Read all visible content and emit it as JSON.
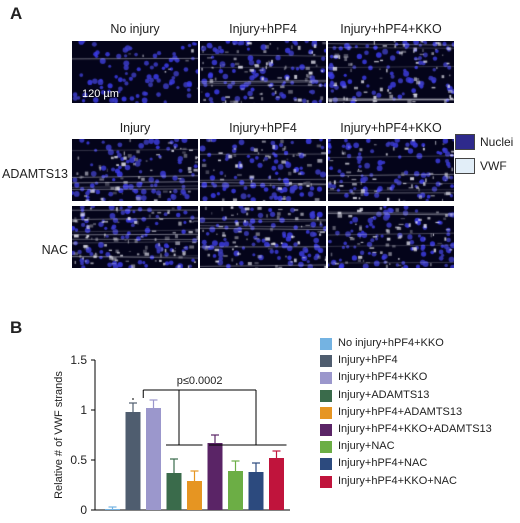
{
  "panel_a": {
    "letter": "A",
    "col_titles_top": [
      "No injury",
      "Injury+hPF4",
      "Injury+hPF4+KKO"
    ],
    "col_titles_mid": [
      "Injury",
      "Injury+hPF4",
      "Injury+hPF4+KKO"
    ],
    "row_labels": [
      "ADAMTS13",
      "NAC"
    ],
    "scale_bar_label": "120 µm",
    "key": [
      {
        "label": "Nuclei",
        "color": "#2e2a8c"
      },
      {
        "label": "VWF",
        "color": "#e2eef8"
      }
    ]
  },
  "panel_b": {
    "letter": "B"
  },
  "chart_data": {
    "type": "bar",
    "title": "",
    "xlabel": "",
    "ylabel": "Relative # of VWF strands",
    "ylim": [
      0,
      1.5
    ],
    "yticks": [
      "0",
      "0.5",
      "1",
      "1.5"
    ],
    "grid": false,
    "legend_position": "right",
    "annotation": "p≤0.0002",
    "categories": [
      "No injury+hPF4+KKO",
      "Injury+hPF4",
      "Injury+hPF4+KKO",
      "Injury+ADAMTS13",
      "Injury+hPF4+ADAMTS13",
      "Injury+hPF4+KKO+ADAMTS13",
      "Injury+NAC",
      "Injury+hPF4+NAC",
      "Injury+hPF4+KKO+NAC"
    ],
    "values": [
      0.01,
      0.98,
      1.02,
      0.37,
      0.29,
      0.67,
      0.39,
      0.38,
      0.52
    ],
    "errors": [
      0.02,
      0.09,
      0.08,
      0.14,
      0.1,
      0.08,
      0.1,
      0.09,
      0.07
    ],
    "colors": [
      "#74b3e2",
      "#4f5d6f",
      "#9b97cc",
      "#3a6b4b",
      "#e69522",
      "#5a2466",
      "#6cae45",
      "#2c4a7e",
      "#c0143c"
    ]
  }
}
